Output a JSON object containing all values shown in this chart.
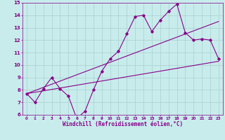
{
  "xlabel": "Windchill (Refroidissement éolien,°C)",
  "ylabel": "",
  "xlim": [
    -0.5,
    23.5
  ],
  "ylim": [
    6,
    15
  ],
  "xticks": [
    0,
    1,
    2,
    3,
    4,
    5,
    6,
    7,
    8,
    9,
    10,
    11,
    12,
    13,
    14,
    15,
    16,
    17,
    18,
    19,
    20,
    21,
    22,
    23
  ],
  "yticks": [
    6,
    7,
    8,
    9,
    10,
    11,
    12,
    13,
    14,
    15
  ],
  "bg_color": "#c8ecec",
  "grid_color": "#aed4d4",
  "line_color": "#880088",
  "line1_x": [
    0,
    1,
    2,
    3,
    4,
    5,
    6,
    7,
    8,
    9,
    10,
    11,
    12,
    13,
    14,
    15,
    16,
    17,
    18,
    19,
    20,
    21,
    22,
    23
  ],
  "line1_y": [
    7.7,
    7.0,
    8.1,
    9.0,
    8.1,
    7.5,
    5.7,
    6.3,
    8.0,
    9.5,
    10.5,
    11.1,
    12.5,
    13.9,
    14.0,
    12.7,
    13.6,
    14.3,
    14.9,
    12.6,
    12.0,
    12.1,
    12.0,
    10.5
  ],
  "line2_x": [
    0,
    23
  ],
  "line2_y": [
    7.7,
    13.5
  ],
  "line3_x": [
    0,
    23
  ],
  "line3_y": [
    7.7,
    10.3
  ]
}
